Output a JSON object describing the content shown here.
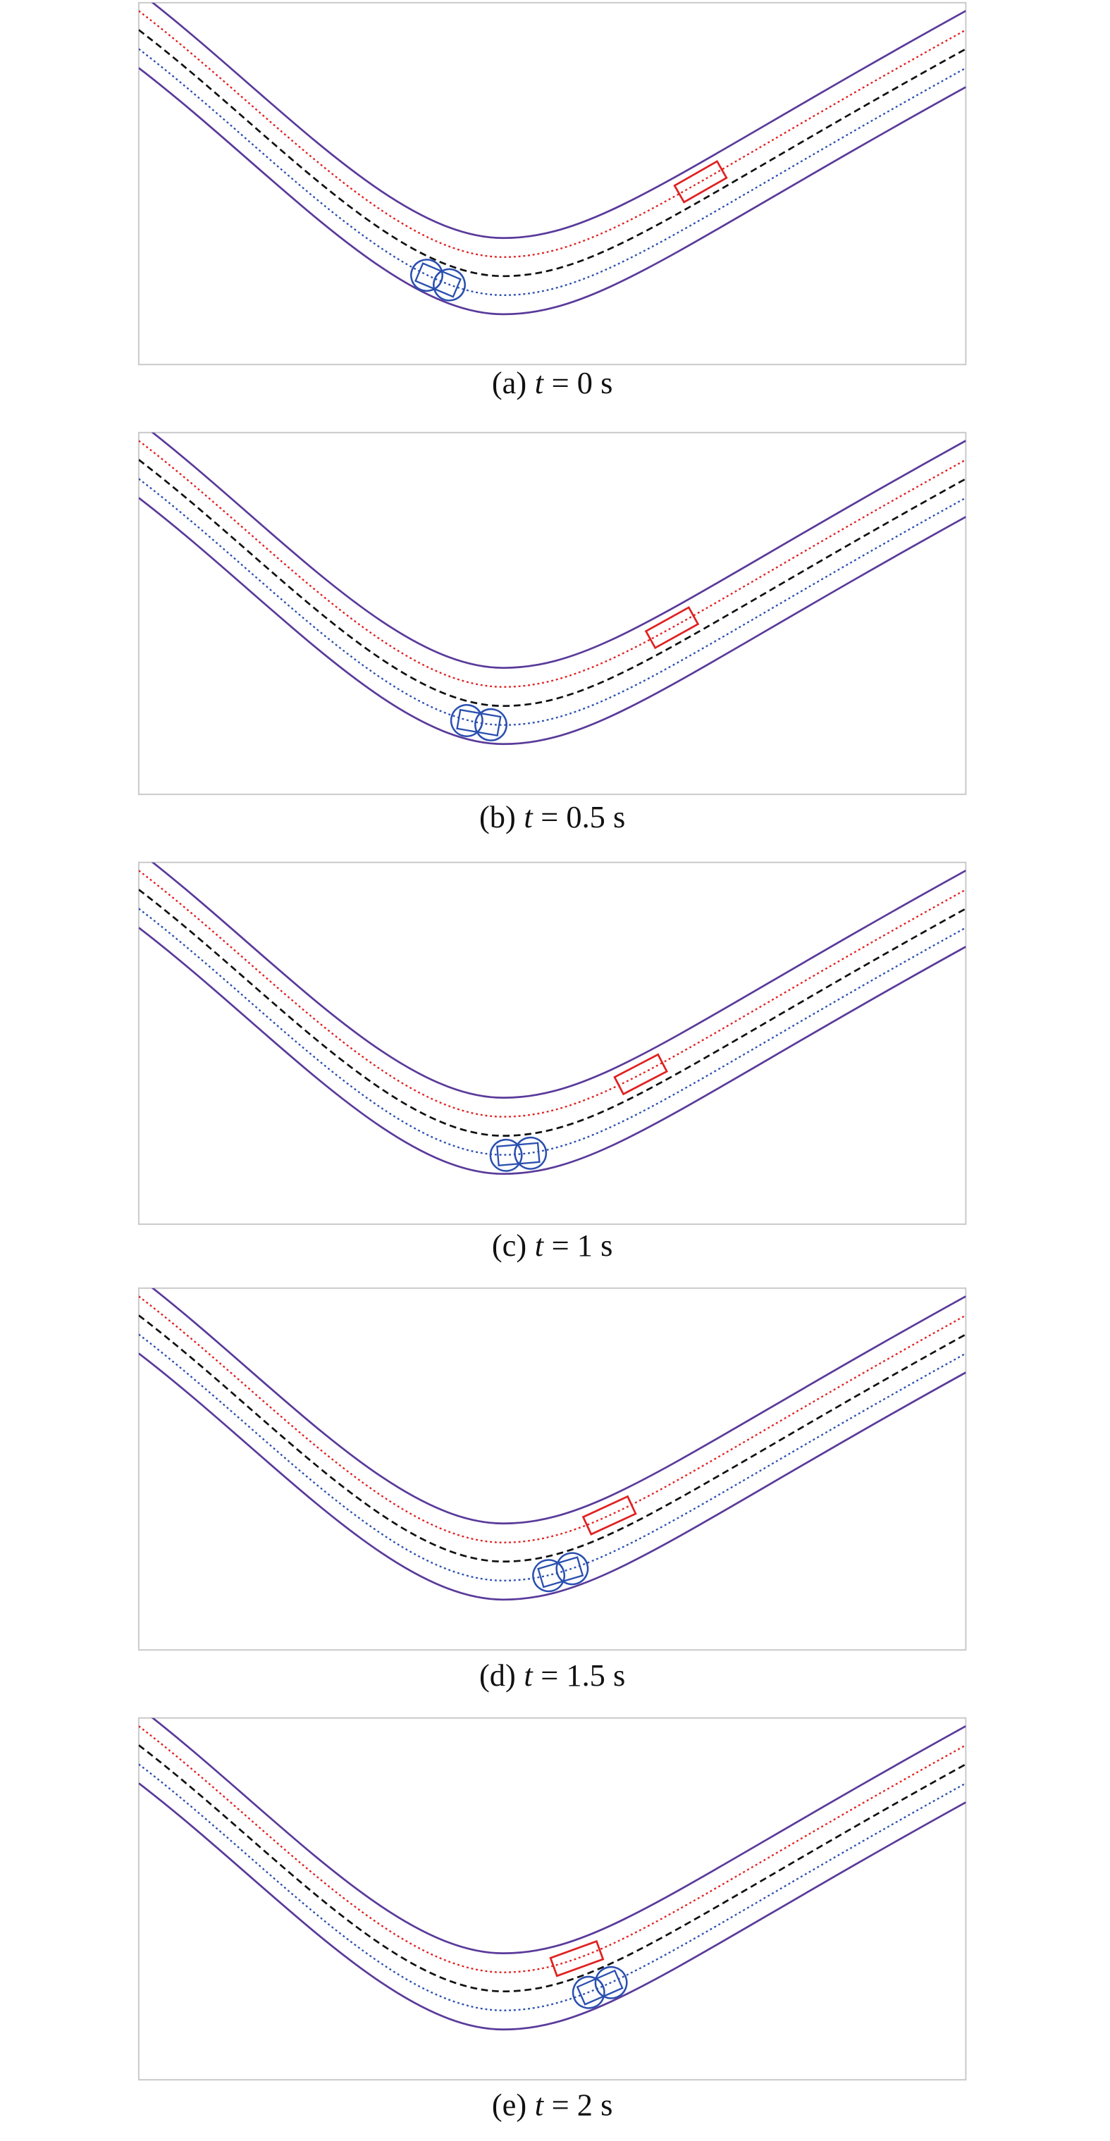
{
  "panels": [
    {
      "caption": {
        "label": "(a)",
        "variable": "t",
        "value": "= 0 s"
      }
    },
    {
      "caption": {
        "label": "(b)",
        "variable": "t",
        "value": "= 0.5 s"
      }
    },
    {
      "caption": {
        "label": "(c)",
        "variable": "t",
        "value": "= 1 s"
      }
    },
    {
      "caption": {
        "label": "(d)",
        "variable": "t",
        "value": "= 1.5 s"
      }
    },
    {
      "caption": {
        "label": "(e)",
        "variable": "t",
        "value": "= 2 s"
      }
    }
  ]
}
